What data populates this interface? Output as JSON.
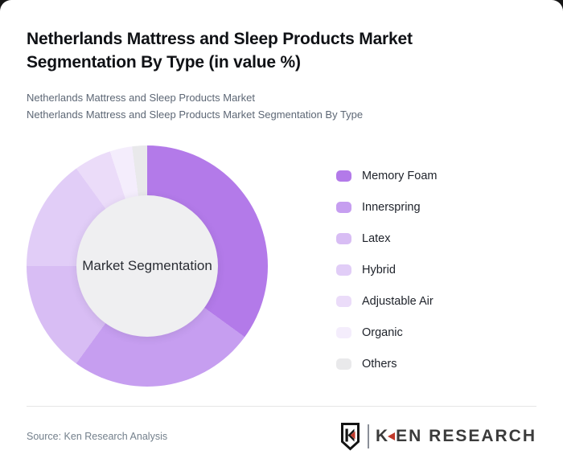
{
  "page": {
    "title": "Netherlands Mattress and Sleep Products Market Segmentation By Type (in value %)",
    "subtitle_line1": "Netherlands Mattress and Sleep Products Market",
    "subtitle_line2": "Netherlands Mattress and Sleep Products Market Segmentation By Type"
  },
  "chart_data": {
    "type": "pie",
    "donut": true,
    "title": "Netherlands Mattress and Sleep Products Market Segmentation By Type (in value %)",
    "center_label": "Market Segmentation",
    "unit": "%",
    "start_angle_deg": 0,
    "direction": "clockwise",
    "legend_position": "right",
    "categories": [
      "Memory Foam",
      "Innerspring",
      "Latex",
      "Hybrid",
      "Adjustable Air",
      "Organic",
      "Others"
    ],
    "values": [
      35,
      25,
      15,
      15,
      5,
      3,
      2
    ],
    "colors": [
      "#b37ae9",
      "#c69ef0",
      "#d8bdf4",
      "#e1cdf7",
      "#ebdcf9",
      "#f4edfc",
      "#e9e9eb"
    ],
    "hole_color": "#efeff1"
  },
  "footer": {
    "source_label": "Source: Ken Research Analysis",
    "logo": {
      "shield_letter": "K",
      "brand_k": "K",
      "brand_rest": "EN RESEARCH",
      "accent_color": "#c0392b",
      "text_color": "#3b3b3b"
    }
  }
}
